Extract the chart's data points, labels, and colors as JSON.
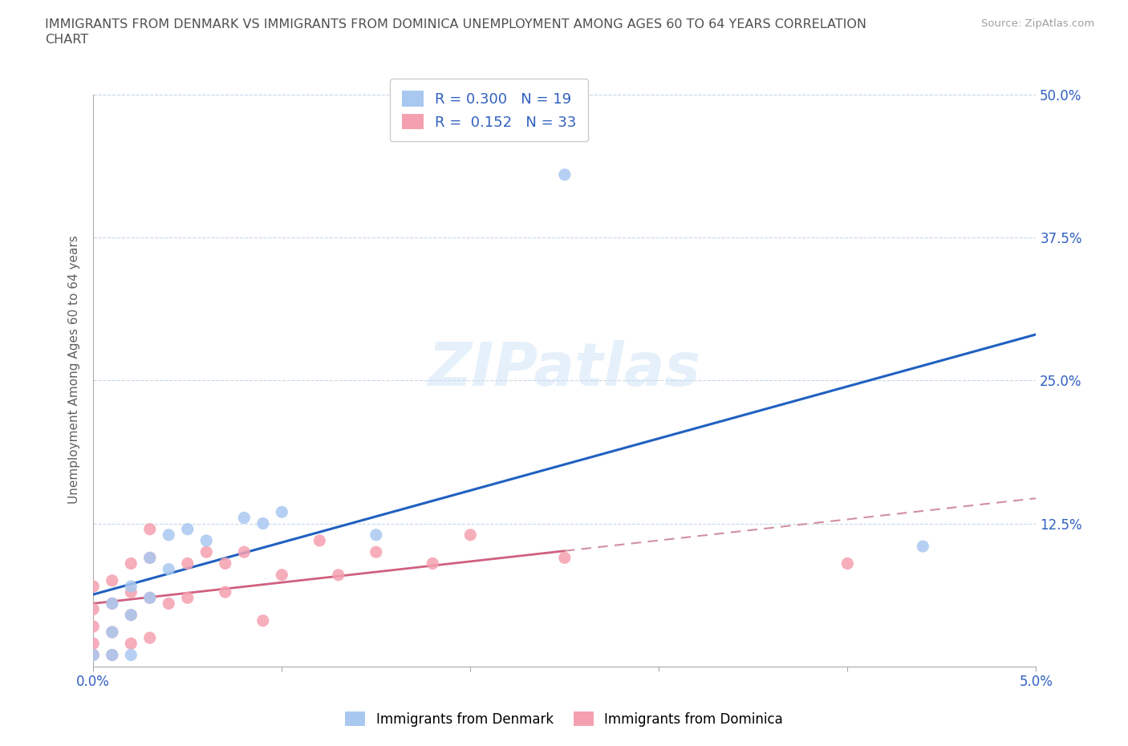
{
  "title_line1": "IMMIGRANTS FROM DENMARK VS IMMIGRANTS FROM DOMINICA UNEMPLOYMENT AMONG AGES 60 TO 64 YEARS CORRELATION",
  "title_line2": "CHART",
  "source": "Source: ZipAtlas.com",
  "ylabel": "Unemployment Among Ages 60 to 64 years",
  "xlim": [
    0.0,
    0.05
  ],
  "ylim": [
    0.0,
    0.52
  ],
  "denmark_color": "#a8c8f0",
  "dominica_color": "#f5a0b0",
  "denmark_R": 0.3,
  "denmark_N": 19,
  "dominica_R": 0.152,
  "dominica_N": 33,
  "legend_color": "#3060c0",
  "dk_line_color": "#2060c0",
  "dm_line_solid_color": "#d06080",
  "dm_line_dash_color": "#d090a0",
  "denmark_x": [
    0.0,
    0.001,
    0.001,
    0.001,
    0.002,
    0.002,
    0.002,
    0.003,
    0.003,
    0.004,
    0.004,
    0.005,
    0.006,
    0.008,
    0.009,
    0.01,
    0.015,
    0.025,
    0.044
  ],
  "denmark_y": [
    0.01,
    0.01,
    0.03,
    0.055,
    0.01,
    0.045,
    0.07,
    0.06,
    0.095,
    0.085,
    0.115,
    0.12,
    0.11,
    0.13,
    0.125,
    0.135,
    0.115,
    0.43,
    0.105
  ],
  "dominica_x": [
    0.0,
    0.0,
    0.0,
    0.0,
    0.0,
    0.001,
    0.001,
    0.001,
    0.001,
    0.002,
    0.002,
    0.002,
    0.002,
    0.003,
    0.003,
    0.003,
    0.003,
    0.004,
    0.005,
    0.005,
    0.006,
    0.007,
    0.007,
    0.008,
    0.009,
    0.01,
    0.012,
    0.013,
    0.015,
    0.018,
    0.02,
    0.025,
    0.04
  ],
  "dominica_y": [
    0.01,
    0.02,
    0.035,
    0.05,
    0.07,
    0.01,
    0.03,
    0.055,
    0.075,
    0.02,
    0.045,
    0.065,
    0.09,
    0.025,
    0.06,
    0.095,
    0.12,
    0.055,
    0.06,
    0.09,
    0.1,
    0.065,
    0.09,
    0.1,
    0.04,
    0.08,
    0.11,
    0.08,
    0.1,
    0.09,
    0.115,
    0.095,
    0.09
  ],
  "background_color": "#ffffff",
  "grid_color": "#c8d8e8",
  "title_color": "#505050",
  "axis_label_color": "#3060c0",
  "ylabel_color": "#606060"
}
